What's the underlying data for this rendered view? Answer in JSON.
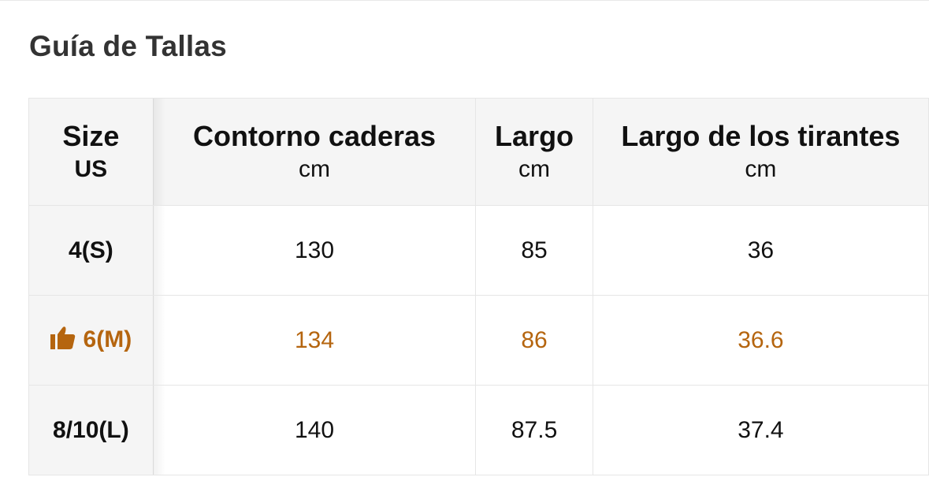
{
  "title": "Guía de Tallas",
  "accent_color": "#b5650f",
  "columns": [
    {
      "label": "Size",
      "unit": "US"
    },
    {
      "label": "Contorno caderas",
      "unit": "cm"
    },
    {
      "label": "Largo",
      "unit": "cm"
    },
    {
      "label": "Largo de los tirantes",
      "unit": "cm"
    }
  ],
  "rows": [
    {
      "size": "4(S)",
      "values": [
        "130",
        "85",
        "36"
      ],
      "recommended": false
    },
    {
      "size": "6(M)",
      "values": [
        "134",
        "86",
        "36.6"
      ],
      "recommended": true,
      "icon": "thumbs-up-icon"
    },
    {
      "size": "8/10(L)",
      "values": [
        "140",
        "87.5",
        "37.4"
      ],
      "recommended": false
    }
  ]
}
